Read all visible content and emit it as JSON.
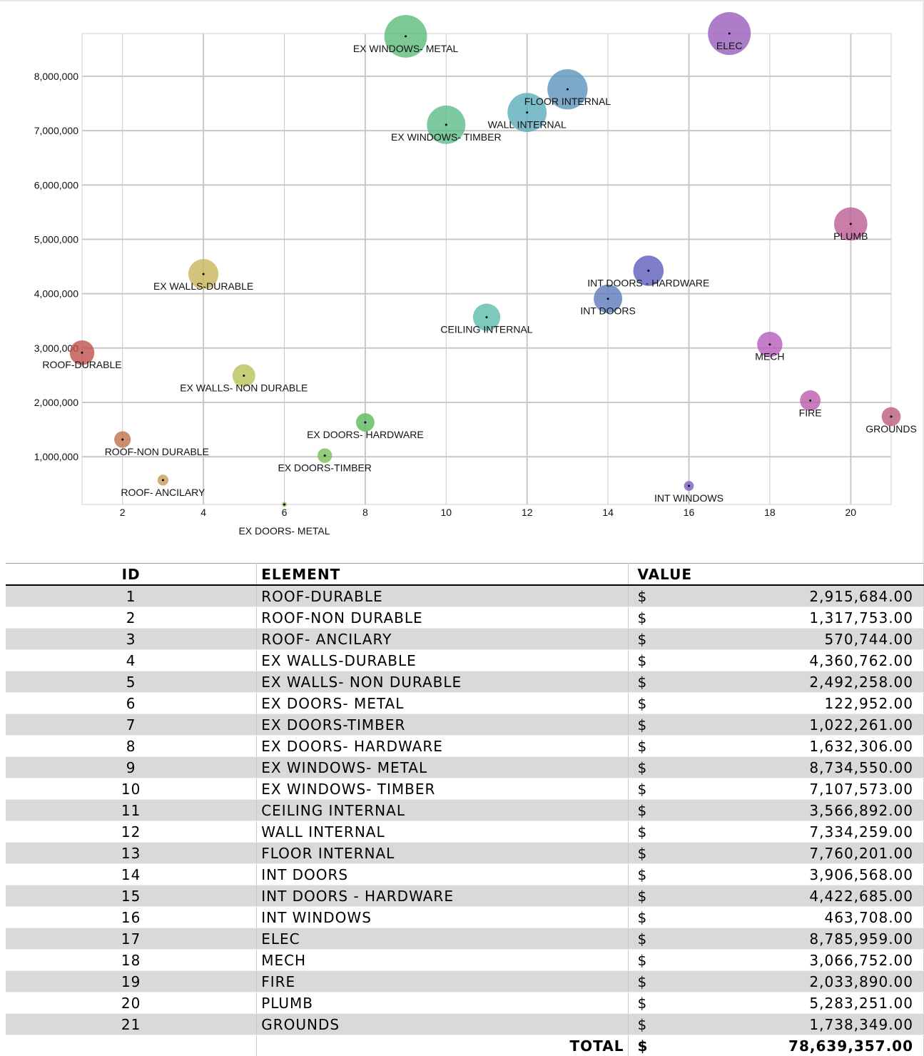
{
  "chart_data": {
    "type": "bubble",
    "x": [
      1,
      2,
      3,
      4,
      5,
      6,
      7,
      8,
      9,
      10,
      11,
      12,
      13,
      14,
      15,
      16,
      17,
      18,
      19,
      20,
      21
    ],
    "labels": [
      "ROOF-DURABLE",
      "ROOF-NON DURABLE",
      "ROOF- ANCILARY",
      "EX WALLS-DURABLE",
      "EX WALLS- NON DURABLE",
      "EX DOORS- METAL",
      "EX DOORS-TIMBER",
      "EX DOORS- HARDWARE",
      "EX WINDOWS- METAL",
      "EX WINDOWS- TIMBER",
      "CEILING INTERNAL",
      "WALL INTERNAL",
      "FLOOR INTERNAL",
      "INT DOORS",
      "INT DOORS - HARDWARE",
      "INT WINDOWS",
      "ELEC",
      "MECH",
      "FIRE",
      "PLUMB",
      "GROUNDS"
    ],
    "values": [
      2915684,
      1317753,
      570744,
      4360762,
      2492258,
      122952,
      1022261,
      1632306,
      8734550,
      7107573,
      3566892,
      7334259,
      7760201,
      3906568,
      4422685,
      463708,
      8785959,
      3066752,
      2033890,
      5283251,
      1738349
    ],
    "colors": [
      "#c0504d",
      "#c0704d",
      "#c89a5a",
      "#c8b45a",
      "#b8c05a",
      "#8cc05a",
      "#78c05a",
      "#5cb85c",
      "#5cbb7a",
      "#5cbb88",
      "#5cbbaa",
      "#5cabbb",
      "#5c93bb",
      "#5c7bbb",
      "#5c5cbb",
      "#7a5cbb",
      "#9a5cbb",
      "#b85cbb",
      "#bb5cab",
      "#bb5c93",
      "#bb5c7b"
    ],
    "ylim": [
      122952,
      8785959
    ],
    "xlim": [
      1,
      21
    ],
    "yticks": [
      1000000,
      2000000,
      3000000,
      4000000,
      5000000,
      6000000,
      7000000,
      8000000
    ],
    "ytick_labels": [
      "1,000,000",
      "2,000,000",
      "3,000,000",
      "4,000,000",
      "5,000,000",
      "6,000,000",
      "7,000,000",
      "8,000,000"
    ],
    "xticks": [
      2,
      4,
      6,
      8,
      10,
      12,
      14,
      16,
      18,
      20
    ],
    "xtick_labels": [
      "2",
      "4",
      "6",
      "8",
      "10",
      "12",
      "14",
      "16",
      "18",
      "20"
    ],
    "grid": true
  },
  "table": {
    "headers": {
      "id": "ID",
      "element": "ELEMENT",
      "value": "VALUE"
    },
    "currency": "$",
    "rows": [
      {
        "id": "1",
        "element": "ROOF-DURABLE",
        "value": "2,915,684.00"
      },
      {
        "id": "2",
        "element": "ROOF-NON DURABLE",
        "value": "1,317,753.00"
      },
      {
        "id": "3",
        "element": "ROOF- ANCILARY",
        "value": "570,744.00"
      },
      {
        "id": "4",
        "element": "EX WALLS-DURABLE",
        "value": "4,360,762.00"
      },
      {
        "id": "5",
        "element": "EX WALLS- NON DURABLE",
        "value": "2,492,258.00"
      },
      {
        "id": "6",
        "element": "EX DOORS- METAL",
        "value": "122,952.00"
      },
      {
        "id": "7",
        "element": "EX DOORS-TIMBER",
        "value": "1,022,261.00"
      },
      {
        "id": "8",
        "element": "EX DOORS- HARDWARE",
        "value": "1,632,306.00"
      },
      {
        "id": "9",
        "element": "EX WINDOWS- METAL",
        "value": "8,734,550.00"
      },
      {
        "id": "10",
        "element": "EX WINDOWS- TIMBER",
        "value": "7,107,573.00"
      },
      {
        "id": "11",
        "element": "CEILING INTERNAL",
        "value": "3,566,892.00"
      },
      {
        "id": "12",
        "element": "WALL INTERNAL",
        "value": "7,334,259.00"
      },
      {
        "id": "13",
        "element": "FLOOR INTERNAL",
        "value": "7,760,201.00"
      },
      {
        "id": "14",
        "element": "INT DOORS",
        "value": "3,906,568.00"
      },
      {
        "id": "15",
        "element": "INT DOORS - HARDWARE",
        "value": "4,422,685.00"
      },
      {
        "id": "16",
        "element": "INT WINDOWS",
        "value": "463,708.00"
      },
      {
        "id": "17",
        "element": "ELEC",
        "value": "8,785,959.00"
      },
      {
        "id": "18",
        "element": "MECH",
        "value": "3,066,752.00"
      },
      {
        "id": "19",
        "element": "FIRE",
        "value": "2,033,890.00"
      },
      {
        "id": "20",
        "element": "PLUMB",
        "value": "5,283,251.00"
      },
      {
        "id": "21",
        "element": "GROUNDS",
        "value": "1,738,349.00"
      }
    ],
    "total_label": "TOTAL",
    "total_value": "78,639,357.00"
  }
}
